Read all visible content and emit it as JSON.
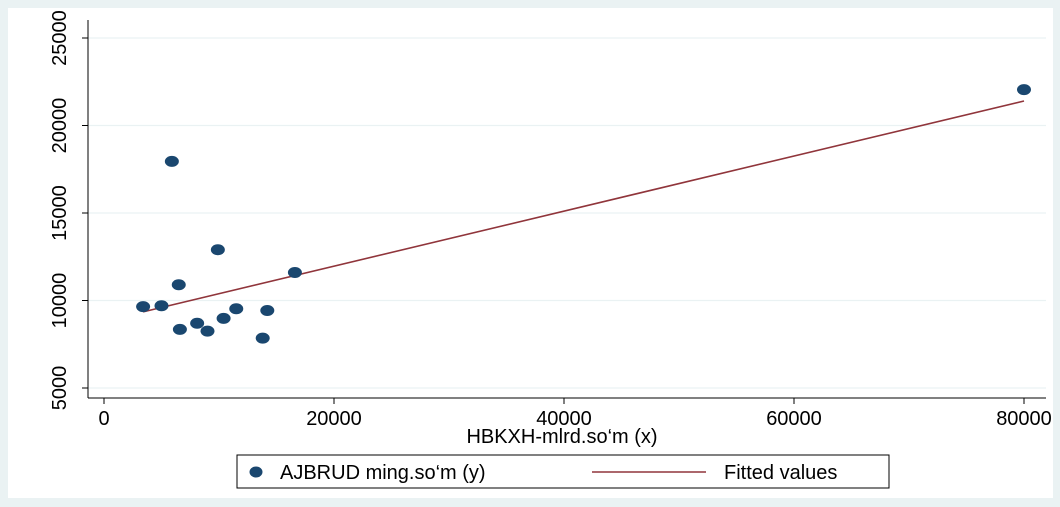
{
  "chart_data": {
    "type": "scatter",
    "xlabel": "HBKXH-mlrd.so‘m (x)",
    "ylabel": "",
    "xlim": [
      0,
      80000
    ],
    "ylim": [
      5000,
      25000
    ],
    "x_ticks": [
      0,
      20000,
      40000,
      60000,
      80000
    ],
    "y_ticks": [
      5000,
      10000,
      15000,
      20000,
      25000
    ],
    "grid": "horizontal",
    "legend_position": "bottom",
    "series": [
      {
        "name": "AJBRUD ming.so‘m (y)",
        "kind": "scatter",
        "color": "#1a476f",
        "points": [
          {
            "x": 3400,
            "y": 9650
          },
          {
            "x": 5000,
            "y": 9700
          },
          {
            "x": 5900,
            "y": 17950
          },
          {
            "x": 6500,
            "y": 10900
          },
          {
            "x": 6600,
            "y": 8350
          },
          {
            "x": 8100,
            "y": 8700
          },
          {
            "x": 9000,
            "y": 8250
          },
          {
            "x": 9900,
            "y": 12900
          },
          {
            "x": 10400,
            "y": 8980
          },
          {
            "x": 11500,
            "y": 9530
          },
          {
            "x": 13800,
            "y": 7850
          },
          {
            "x": 14200,
            "y": 9430
          },
          {
            "x": 16600,
            "y": 11600
          },
          {
            "x": 80000,
            "y": 22050
          }
        ]
      },
      {
        "name": "Fitted values",
        "kind": "line",
        "color": "#90353b",
        "points": [
          {
            "x": 3400,
            "y": 9350
          },
          {
            "x": 80000,
            "y": 21400
          }
        ]
      }
    ]
  }
}
